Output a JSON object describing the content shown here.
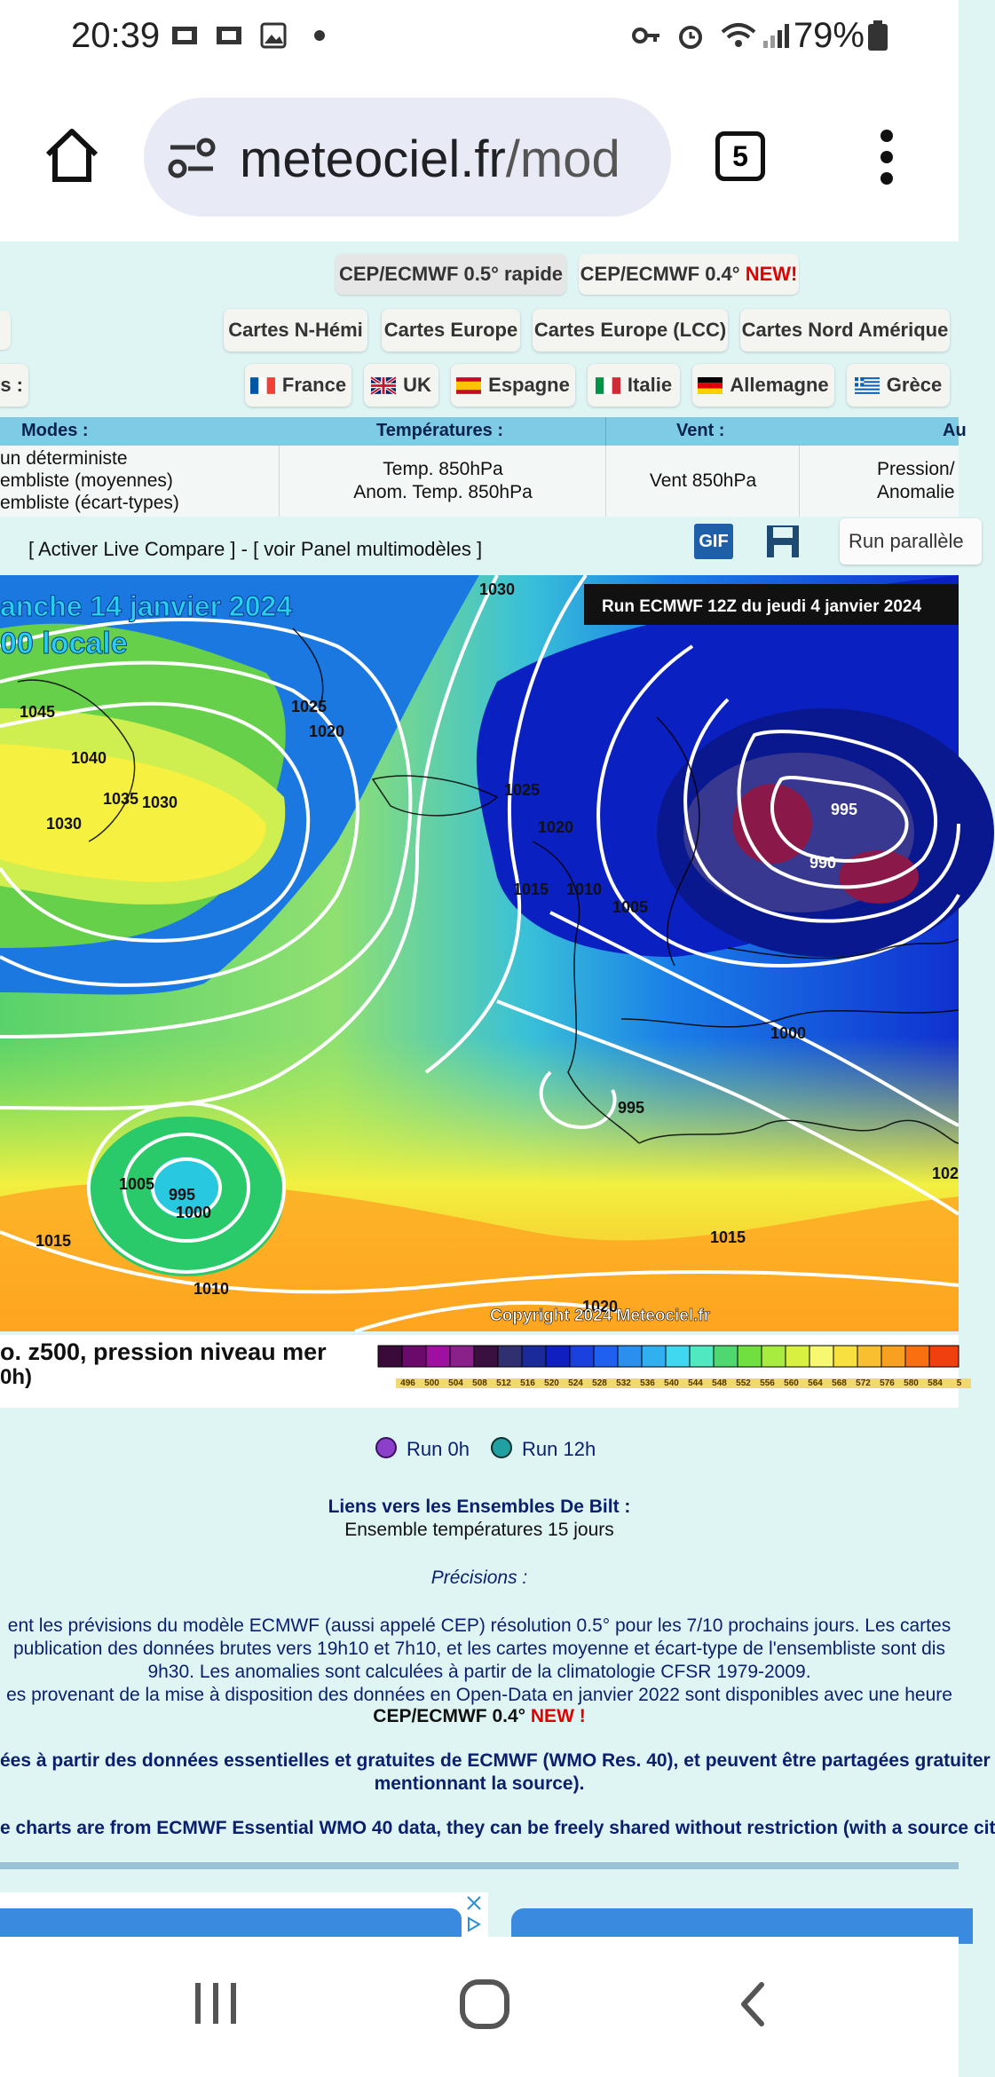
{
  "status_bar": {
    "time": "20:39",
    "battery": "79%"
  },
  "browser": {
    "url_host": "meteociel.fr",
    "url_path": "/mod",
    "tab_count": "5"
  },
  "top_buttons": {
    "cep_rapide": "CEP/ECMWF 0.5° rapide",
    "cep_04": "CEP/ECMWF 0.4°",
    "new": "NEW!",
    "cartes_n_hemi": "Cartes N-Hémi",
    "cartes_europe": "Cartes Europe",
    "cartes_europe_lcc": "Cartes Europe (LCC)",
    "cartes_nord_amerique": "Cartes Nord Amérique",
    "s_button": "s :"
  },
  "countries": [
    "France",
    "UK",
    "Espagne",
    "Italie",
    "Allemagne",
    "Grèce"
  ],
  "table": {
    "headers": [
      "Modes :",
      "Températures :",
      "Vent :",
      "Au"
    ],
    "modes": [
      "un déterministe",
      "embliste (moyennes)",
      "embliste (écart-types)"
    ],
    "temperatures": [
      "Temp. 850hPa",
      "Anom. Temp. 850hPa"
    ],
    "vent": "Vent 850hPa",
    "pression": [
      "Pression/",
      "Anomalie"
    ]
  },
  "toolbar": {
    "live_compare": "[ Activer Live Compare ] - [ voir Panel multimodèles ]",
    "gif": "GIF",
    "run_parallele": "Run parallèle"
  },
  "map": {
    "date_line1": "anche 14 janvier 2024",
    "date_line2": "00 locale",
    "run_label": "Run ECMWF 12Z du jeudi 4 janvier 2024",
    "copyright": "Copyright 2024 Meteociel.fr",
    "isobars": [
      "1030",
      "1045",
      "1040",
      "1035",
      "1030",
      "1030",
      "1025",
      "1020",
      "1025",
      "1020",
      "1015",
      "1010",
      "1005",
      "995",
      "990",
      "1000",
      "995",
      "1005",
      "995",
      "1000",
      "1015",
      "1010",
      "1015",
      "1020",
      "102"
    ]
  },
  "legend": {
    "title": "o. z500, pression niveau mer",
    "subtitle": "0h)",
    "ticks": [
      "496",
      "500",
      "504",
      "508",
      "512",
      "516",
      "520",
      "524",
      "528",
      "532",
      "536",
      "540",
      "544",
      "548",
      "552",
      "556",
      "560",
      "564",
      "568",
      "572",
      "576",
      "580",
      "584",
      "5"
    ]
  },
  "runs": {
    "run0": "Run 0h",
    "run12": "Run 12h"
  },
  "links": {
    "title": "Liens vers les Ensembles De Bilt :",
    "ensemble": "Ensemble températures 15 jours",
    "precisions": "Précisions :",
    "p1": "ent les prévisions du modèle ECMWF (aussi appelé CEP) résolution 0.5° pour les 7/10 prochains jours. Les cartes",
    "p2": "publication des données brutes vers 19h10 et 7h10, et les cartes moyenne et écart-type de l'ensembliste sont dis",
    "p3": "9h30. Les anomalies sont calculées à partir de la climatologie CFSR 1979-2009.",
    "p4": "es provenant de la mise à disposition des données en Open-Data en janvier 2022 sont disponibles avec une heure",
    "p5a": "CEP/ECMWF 0.4°",
    "p5b": "NEW !",
    "p6": "ées à partir des données essentielles et gratuites de ECMWF (WMO Res. 40), et peuvent être partagées gratuiter",
    "p7": "mentionnant la source).",
    "p8": "e charts are from ECMWF Essential WMO 40 data, they can be freely shared without restriction (with a source cit"
  },
  "colors": {
    "accent_new": "#e00000",
    "header_bg": "#7ecbe6",
    "page_bg": "#dff5f3",
    "link_blue": "#0a1f6e"
  }
}
